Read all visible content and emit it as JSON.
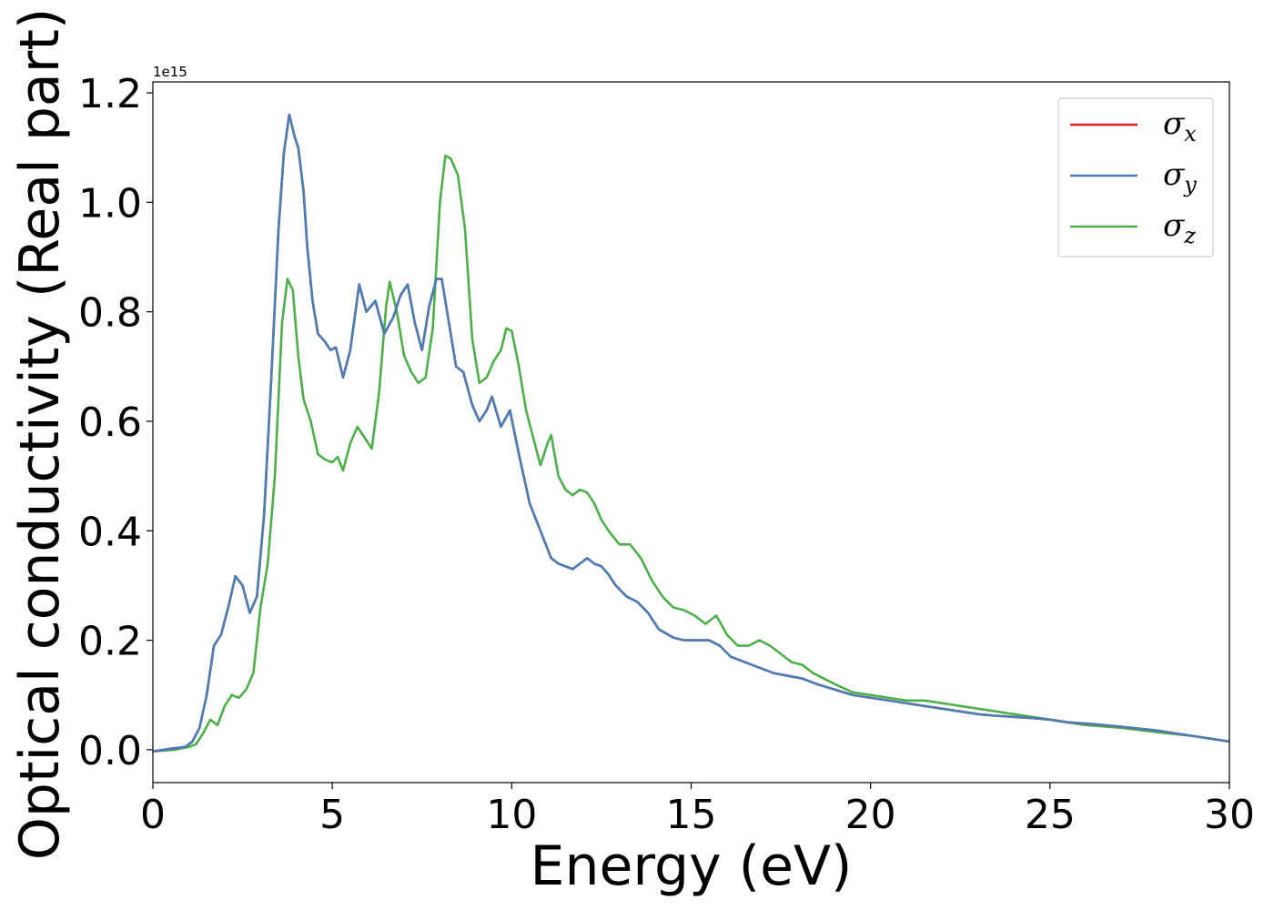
{
  "chart_data": {
    "type": "line",
    "title": "",
    "xlabel": "Energy (eV)",
    "ylabel": "Optical conductivity (Real part)",
    "y_offset_label": "1e15",
    "xlim": [
      0,
      30
    ],
    "ylim": [
      -0.06,
      1.22
    ],
    "xticks": [
      0,
      5,
      10,
      15,
      20,
      25,
      30
    ],
    "xtick_labels": [
      "0",
      "5",
      "10",
      "15",
      "20",
      "25",
      "30"
    ],
    "yticks": [
      0.0,
      0.2,
      0.4,
      0.6,
      0.8,
      1.0,
      1.2
    ],
    "ytick_labels": [
      "0.0",
      "0.2",
      "0.4",
      "0.6",
      "0.8",
      "1.0",
      "1.2"
    ],
    "grid": false,
    "legend_position": "top-right",
    "series": [
      {
        "name": "x",
        "legend_symbol": "σ",
        "legend_sub": "x",
        "color": "#e41a1c",
        "x": [
          0,
          0.5,
          0.9,
          1.1,
          1.3,
          1.5,
          1.7,
          1.9,
          2.1,
          2.3,
          2.5,
          2.7,
          2.9,
          3.1,
          3.3,
          3.5,
          3.65,
          3.8,
          3.95,
          4.05,
          4.2,
          4.3,
          4.45,
          4.6,
          4.8,
          4.95,
          5.1,
          5.3,
          5.5,
          5.75,
          5.95,
          6.2,
          6.45,
          6.7,
          6.9,
          7.1,
          7.3,
          7.5,
          7.7,
          7.9,
          8.05,
          8.25,
          8.45,
          8.65,
          8.9,
          9.1,
          9.3,
          9.45,
          9.7,
          9.95,
          10.2,
          10.5,
          10.8,
          11.1,
          11.3,
          11.5,
          11.7,
          11.9,
          12.1,
          12.3,
          12.5,
          12.7,
          12.9,
          13.2,
          13.5,
          13.8,
          14.1,
          14.5,
          14.8,
          15.2,
          15.5,
          15.8,
          16.1,
          16.5,
          16.9,
          17.3,
          17.7,
          18.1,
          18.5,
          19,
          19.5,
          20,
          20.5,
          21,
          21.5,
          22,
          22.5,
          23,
          23.5,
          24,
          24.5,
          25,
          25.5,
          26,
          27,
          28,
          29,
          30
        ],
        "y": [
          -0.003,
          0.002,
          0.005,
          0.015,
          0.04,
          0.1,
          0.19,
          0.21,
          0.26,
          0.317,
          0.3,
          0.25,
          0.28,
          0.43,
          0.68,
          0.95,
          1.09,
          1.16,
          1.12,
          1.1,
          1.02,
          0.92,
          0.82,
          0.76,
          0.745,
          0.73,
          0.735,
          0.68,
          0.73,
          0.85,
          0.8,
          0.82,
          0.76,
          0.79,
          0.83,
          0.85,
          0.78,
          0.73,
          0.81,
          0.86,
          0.86,
          0.78,
          0.7,
          0.69,
          0.63,
          0.6,
          0.62,
          0.645,
          0.59,
          0.62,
          0.54,
          0.45,
          0.4,
          0.35,
          0.34,
          0.335,
          0.33,
          0.34,
          0.35,
          0.34,
          0.335,
          0.32,
          0.3,
          0.28,
          0.27,
          0.25,
          0.22,
          0.205,
          0.2,
          0.2,
          0.2,
          0.19,
          0.17,
          0.16,
          0.15,
          0.14,
          0.135,
          0.13,
          0.12,
          0.11,
          0.1,
          0.095,
          0.09,
          0.085,
          0.08,
          0.075,
          0.07,
          0.065,
          0.062,
          0.06,
          0.058,
          0.055,
          0.05,
          0.048,
          0.042,
          0.035,
          0.025,
          0.015
        ]
      },
      {
        "name": "y",
        "legend_symbol": "σ",
        "legend_sub": "y",
        "color": "#4a7eb6",
        "x": [
          0,
          0.5,
          0.9,
          1.1,
          1.3,
          1.5,
          1.7,
          1.9,
          2.1,
          2.3,
          2.5,
          2.7,
          2.9,
          3.1,
          3.3,
          3.5,
          3.65,
          3.8,
          3.95,
          4.05,
          4.2,
          4.3,
          4.45,
          4.6,
          4.8,
          4.95,
          5.1,
          5.3,
          5.5,
          5.75,
          5.95,
          6.2,
          6.45,
          6.7,
          6.9,
          7.1,
          7.3,
          7.5,
          7.7,
          7.9,
          8.05,
          8.25,
          8.45,
          8.65,
          8.9,
          9.1,
          9.3,
          9.45,
          9.7,
          9.95,
          10.2,
          10.5,
          10.8,
          11.1,
          11.3,
          11.5,
          11.7,
          11.9,
          12.1,
          12.3,
          12.5,
          12.7,
          12.9,
          13.2,
          13.5,
          13.8,
          14.1,
          14.5,
          14.8,
          15.2,
          15.5,
          15.8,
          16.1,
          16.5,
          16.9,
          17.3,
          17.7,
          18.1,
          18.5,
          19,
          19.5,
          20,
          20.5,
          21,
          21.5,
          22,
          22.5,
          23,
          23.5,
          24,
          24.5,
          25,
          25.5,
          26,
          27,
          28,
          29,
          30
        ],
        "y": [
          -0.003,
          0.002,
          0.005,
          0.015,
          0.04,
          0.1,
          0.19,
          0.21,
          0.26,
          0.317,
          0.3,
          0.25,
          0.28,
          0.43,
          0.68,
          0.95,
          1.09,
          1.16,
          1.12,
          1.1,
          1.02,
          0.92,
          0.82,
          0.76,
          0.745,
          0.73,
          0.735,
          0.68,
          0.73,
          0.85,
          0.8,
          0.82,
          0.76,
          0.79,
          0.83,
          0.85,
          0.78,
          0.73,
          0.81,
          0.86,
          0.86,
          0.78,
          0.7,
          0.69,
          0.63,
          0.6,
          0.62,
          0.645,
          0.59,
          0.62,
          0.54,
          0.45,
          0.4,
          0.35,
          0.34,
          0.335,
          0.33,
          0.34,
          0.35,
          0.34,
          0.335,
          0.32,
          0.3,
          0.28,
          0.27,
          0.25,
          0.22,
          0.205,
          0.2,
          0.2,
          0.2,
          0.19,
          0.17,
          0.16,
          0.15,
          0.14,
          0.135,
          0.13,
          0.12,
          0.11,
          0.1,
          0.095,
          0.09,
          0.085,
          0.08,
          0.075,
          0.07,
          0.065,
          0.062,
          0.06,
          0.058,
          0.055,
          0.05,
          0.048,
          0.042,
          0.035,
          0.025,
          0.015
        ]
      },
      {
        "name": "z",
        "legend_symbol": "σ",
        "legend_sub": "z",
        "color": "#4daf4a",
        "x": [
          0,
          0.6,
          1.0,
          1.2,
          1.4,
          1.6,
          1.8,
          2.0,
          2.2,
          2.4,
          2.6,
          2.8,
          3.0,
          3.2,
          3.4,
          3.6,
          3.75,
          3.9,
          4.05,
          4.2,
          4.4,
          4.6,
          4.8,
          5.0,
          5.15,
          5.3,
          5.5,
          5.7,
          5.9,
          6.1,
          6.3,
          6.5,
          6.6,
          6.8,
          7.0,
          7.2,
          7.4,
          7.6,
          7.8,
          8.0,
          8.15,
          8.3,
          8.5,
          8.7,
          8.9,
          9.1,
          9.3,
          9.5,
          9.7,
          9.85,
          10.0,
          10.2,
          10.4,
          10.6,
          10.8,
          11.0,
          11.1,
          11.3,
          11.5,
          11.7,
          11.9,
          12.1,
          12.3,
          12.5,
          12.7,
          13.0,
          13.3,
          13.6,
          13.9,
          14.2,
          14.5,
          14.8,
          15.1,
          15.4,
          15.7,
          16.0,
          16.3,
          16.6,
          16.9,
          17.2,
          17.5,
          17.8,
          18.1,
          18.4,
          18.7,
          19.0,
          19.5,
          20,
          20.5,
          21,
          21.5,
          22,
          22.5,
          23,
          23.5,
          24,
          25,
          26,
          27,
          28,
          29,
          30
        ],
        "y": [
          -0.003,
          0.0,
          0.005,
          0.01,
          0.03,
          0.055,
          0.045,
          0.08,
          0.1,
          0.095,
          0.11,
          0.14,
          0.26,
          0.34,
          0.5,
          0.78,
          0.86,
          0.84,
          0.72,
          0.64,
          0.6,
          0.54,
          0.53,
          0.525,
          0.535,
          0.51,
          0.56,
          0.59,
          0.57,
          0.55,
          0.65,
          0.81,
          0.855,
          0.8,
          0.72,
          0.69,
          0.67,
          0.68,
          0.77,
          1.0,
          1.085,
          1.08,
          1.05,
          0.95,
          0.75,
          0.67,
          0.68,
          0.71,
          0.73,
          0.77,
          0.765,
          0.7,
          0.62,
          0.57,
          0.52,
          0.56,
          0.575,
          0.5,
          0.475,
          0.465,
          0.475,
          0.47,
          0.45,
          0.42,
          0.4,
          0.375,
          0.375,
          0.35,
          0.31,
          0.28,
          0.26,
          0.255,
          0.245,
          0.23,
          0.245,
          0.21,
          0.19,
          0.19,
          0.2,
          0.19,
          0.175,
          0.16,
          0.155,
          0.14,
          0.13,
          0.12,
          0.105,
          0.1,
          0.095,
          0.09,
          0.09,
          0.085,
          0.08,
          0.075,
          0.07,
          0.065,
          0.055,
          0.045,
          0.04,
          0.032,
          0.025,
          0.015
        ]
      }
    ]
  }
}
